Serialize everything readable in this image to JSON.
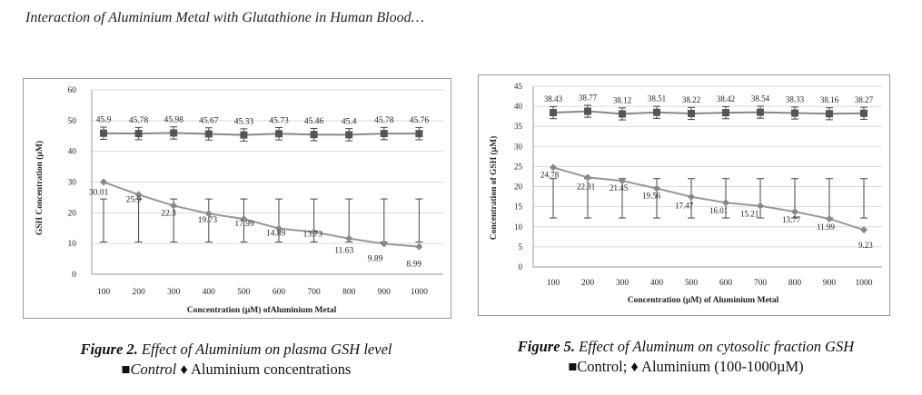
{
  "header": {
    "title": "Interaction of Aluminium Metal with Glutathione in Human Blood…"
  },
  "figures": [
    {
      "caption": {
        "label": "Figure 2.",
        "text": "Effect of  Aluminium on plasma GSH level",
        "legend_control_symbol": "■",
        "legend_control": "Control",
        "legend_al_symbol": "♦",
        "legend_al": "Aluminium concentrations"
      }
    },
    {
      "caption": {
        "label": "Figure 5.",
        "text": "Effect of Aluminum on cytosolic fraction GSH",
        "legend": "■Control; ♦ Aluminium (100-1000µM)"
      }
    }
  ],
  "chart_data": [
    {
      "type": "line",
      "title": "",
      "xlabel": "Concentration (µM) ofAluminium Metal",
      "ylabel": "GSH Concentration (µM)",
      "categories": [
        "100",
        "200",
        "300",
        "400",
        "500",
        "600",
        "700",
        "800",
        "900",
        "1000"
      ],
      "yticks": [
        "0",
        "10",
        "20",
        "30",
        "40",
        "50",
        "60"
      ],
      "ylim": [
        0,
        60
      ],
      "series": [
        {
          "name": "Control",
          "marker": "square",
          "values": [
            45.9,
            45.78,
            45.98,
            45.67,
            45.33,
            45.73,
            45.46,
            45.4,
            45.78,
            45.76
          ],
          "labels": [
            "45.9",
            "45.78",
            "45.98",
            "45.67",
            "45.33",
            "45.73",
            "45.46",
            "45.4",
            "45.78",
            "45.76"
          ],
          "error": [
            2.0,
            2.0,
            2.0,
            2.0,
            2.0,
            2.0,
            2.0,
            2.0,
            2.0,
            2.0
          ],
          "color": "#555555"
        },
        {
          "name": "Aluminium",
          "marker": "diamond",
          "values": [
            30.01,
            25.9,
            22.3,
            19.73,
            17.99,
            14.89,
            13.73,
            11.63,
            9.89,
            8.99
          ],
          "labels": [
            "30.01",
            "25.9",
            "22.3",
            "19.73",
            "17.99",
            "14.89",
            "13.73",
            "11.63",
            "9.89",
            "8.99"
          ],
          "error_low": [
            10.5,
            10.5,
            10.5,
            10.5,
            10.5,
            10.5,
            10.5,
            10.5,
            10.5,
            10.5
          ],
          "error_high": [
            24.5,
            24.5,
            24.5,
            24.5,
            24.5,
            24.5,
            24.5,
            24.5,
            24.5,
            24.5
          ],
          "color": "#999999"
        }
      ]
    },
    {
      "type": "line",
      "title": "",
      "xlabel": "Concentration (µM) of Aluminium Metal",
      "ylabel": "Concentration of GSH (µM)",
      "categories": [
        "100",
        "200",
        "300",
        "400",
        "500",
        "600",
        "700",
        "800",
        "900",
        "1000"
      ],
      "yticks": [
        "0",
        "5",
        "10",
        "15",
        "20",
        "25",
        "30",
        "35",
        "40",
        "45"
      ],
      "ylim": [
        0,
        45
      ],
      "series": [
        {
          "name": "Control",
          "marker": "square",
          "values": [
            38.43,
            38.77,
            38.12,
            38.51,
            38.22,
            38.42,
            38.54,
            38.33,
            38.16,
            38.27
          ],
          "labels": [
            "38.43",
            "38.77",
            "38.12",
            "38.51",
            "38.22",
            "38.42",
            "38.54",
            "38.33",
            "38.16",
            "38.27"
          ],
          "error": [
            1.5,
            1.5,
            1.5,
            1.5,
            1.5,
            1.5,
            1.5,
            1.5,
            1.5,
            1.5
          ],
          "color": "#555555"
        },
        {
          "name": "Aluminium",
          "marker": "diamond",
          "values": [
            24.78,
            22.31,
            21.45,
            19.56,
            17.47,
            16.01,
            15.21,
            13.77,
            11.99,
            9.23
          ],
          "labels": [
            "24.78",
            "22.31",
            "21.45",
            "19.56",
            "17.47",
            "16.01",
            "15.21",
            "13.77",
            "11.99",
            "9.23"
          ],
          "error_low": [
            12.2,
            12.2,
            12.2,
            12.2,
            12.2,
            12.2,
            12.2,
            12.2,
            12.2,
            12.2
          ],
          "error_high": [
            22.0,
            22.0,
            22.0,
            22.0,
            22.0,
            22.0,
            22.0,
            22.0,
            22.0,
            22.0
          ],
          "color": "#999999"
        }
      ]
    }
  ]
}
